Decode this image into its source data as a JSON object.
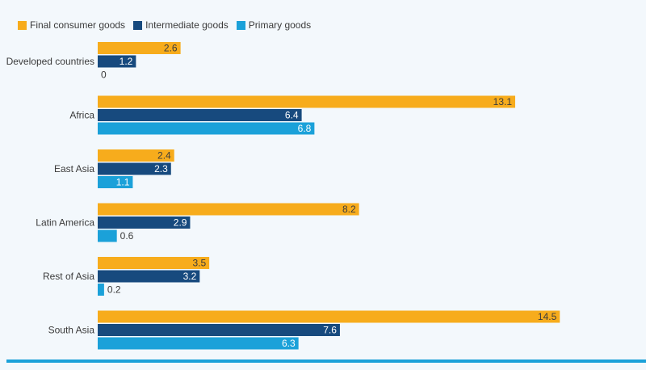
{
  "colors": {
    "final": "#f7ac1c",
    "intermediate": "#174a7e",
    "primary": "#1ba1d9",
    "background": "#f3f8fc",
    "rule": "#1ba1d9",
    "label_dark": "#3b3b3b",
    "label_light": "#ffffff"
  },
  "chart_data": {
    "type": "bar",
    "orientation": "horizontal",
    "categories": [
      "Developed countries",
      "Africa",
      "East Asia",
      "Latin America",
      "Rest of Asia",
      "South Asia"
    ],
    "series": [
      {
        "name": "Final consumer goods",
        "values": [
          2.6,
          13.1,
          2.4,
          8.2,
          3.5,
          14.5
        ]
      },
      {
        "name": "Intermediate goods",
        "values": [
          1.2,
          6.4,
          2.3,
          2.9,
          3.2,
          7.6
        ]
      },
      {
        "name": "Primary goods",
        "values": [
          0,
          6.8,
          1.1,
          0.6,
          0.2,
          6.3
        ]
      }
    ],
    "xlim": [
      0,
      15
    ],
    "grid": false,
    "legend_position": "top-left",
    "data_labels": true
  }
}
